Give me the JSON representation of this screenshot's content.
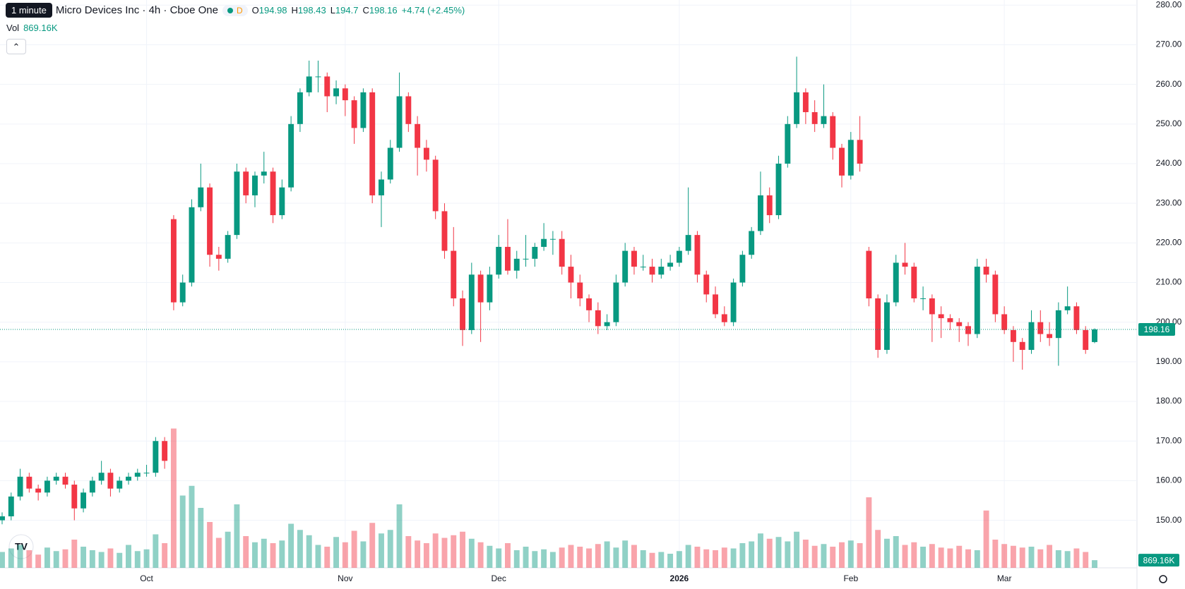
{
  "chart_data": {
    "type": "candlestick",
    "tooltip": "1 minute",
    "title": "Advanced Micro Devices Inc · 4h · Cboe One",
    "interval_badge": "D",
    "ohlc_labels": [
      "O",
      "H",
      "L",
      "C"
    ],
    "change": "+4.74 (+2.45%)",
    "volume_label": "Vol",
    "up_color": "#089981",
    "down_color": "#f23645",
    "ylim": [
      138,
      281.3
    ],
    "yticks": [
      {
        "value": 150,
        "label": "150.00"
      },
      {
        "value": 160,
        "label": "160.00"
      },
      {
        "value": 170,
        "label": "170.00"
      },
      {
        "value": 180,
        "label": "180.00"
      },
      {
        "value": 190,
        "label": "190.00"
      },
      {
        "value": 200,
        "label": "200.00"
      },
      {
        "value": 210,
        "label": "210.00"
      },
      {
        "value": 220,
        "label": "220.00"
      },
      {
        "value": 230,
        "label": "230.00"
      },
      {
        "value": 240,
        "label": "240.00"
      },
      {
        "value": 250,
        "label": "250.00"
      },
      {
        "value": 260,
        "label": "260.00"
      },
      {
        "value": 270,
        "label": "270.00"
      },
      {
        "value": 280,
        "label": "280.00"
      }
    ],
    "grid": true,
    "categories": [
      null,
      null,
      null,
      null,
      null,
      null,
      null,
      null,
      null,
      null,
      null,
      null,
      null,
      null,
      null,
      null,
      "Oct",
      null,
      null,
      null,
      null,
      null,
      null,
      null,
      null,
      null,
      null,
      null,
      null,
      null,
      null,
      null,
      null,
      null,
      null,
      null,
      null,
      null,
      "Nov",
      null,
      null,
      null,
      null,
      null,
      null,
      null,
      null,
      null,
      null,
      null,
      null,
      null,
      null,
      null,
      null,
      "Dec",
      null,
      null,
      null,
      null,
      null,
      null,
      null,
      null,
      null,
      null,
      null,
      null,
      null,
      null,
      null,
      null,
      null,
      null,
      null,
      "2026",
      null,
      null,
      null,
      null,
      null,
      null,
      null,
      null,
      null,
      null,
      null,
      null,
      null,
      null,
      null,
      null,
      null,
      null,
      "Feb",
      null,
      null,
      null,
      null,
      null,
      null,
      null,
      null,
      null,
      null,
      null,
      null,
      null,
      null,
      null,
      null,
      "Mar",
      null,
      null,
      null,
      null,
      null,
      null,
      null,
      null,
      null,
      null
    ],
    "candles": [
      [
        150,
        152,
        149,
        151
      ],
      [
        151,
        157,
        150,
        156
      ],
      [
        156,
        163,
        155,
        161
      ],
      [
        161,
        162,
        157,
        158
      ],
      [
        158,
        159,
        155,
        157
      ],
      [
        157,
        161,
        156,
        160
      ],
      [
        160,
        162,
        159,
        161
      ],
      [
        161,
        162,
        158,
        159
      ],
      [
        159,
        160,
        150,
        153
      ],
      [
        153,
        158,
        152,
        157
      ],
      [
        157,
        161,
        156,
        160
      ],
      [
        160,
        165,
        159,
        162
      ],
      [
        162,
        163,
        156,
        158
      ],
      [
        158,
        161,
        157,
        160
      ],
      [
        160,
        162,
        159,
        161
      ],
      [
        161,
        163,
        160,
        162
      ],
      [
        162,
        164,
        161,
        162
      ],
      [
        162,
        171,
        161,
        170
      ],
      [
        170,
        171,
        163,
        165
      ],
      [
        226,
        227,
        203,
        205
      ],
      [
        205,
        212,
        204,
        210
      ],
      [
        210,
        231,
        209,
        229
      ],
      [
        229,
        240,
        228,
        234
      ],
      [
        234,
        235,
        214,
        217
      ],
      [
        217,
        219,
        213,
        216
      ],
      [
        216,
        223,
        215,
        222
      ],
      [
        222,
        240,
        221,
        238
      ],
      [
        238,
        239,
        230,
        232
      ],
      [
        232,
        238,
        229,
        237
      ],
      [
        237,
        243,
        235,
        238
      ],
      [
        238,
        239,
        225,
        227
      ],
      [
        227,
        236,
        226,
        234
      ],
      [
        234,
        252,
        233,
        250
      ],
      [
        250,
        259,
        248,
        258
      ],
      [
        258,
        266,
        257,
        262
      ],
      [
        262,
        266,
        258,
        262
      ],
      [
        262,
        263,
        253,
        257
      ],
      [
        257,
        261,
        255,
        259
      ],
      [
        259,
        260,
        252,
        256
      ],
      [
        256,
        257,
        245,
        249
      ],
      [
        249,
        259,
        248,
        258
      ],
      [
        258,
        259,
        230,
        232
      ],
      [
        232,
        238,
        224,
        236
      ],
      [
        236,
        246,
        235,
        244
      ],
      [
        244,
        263,
        243,
        257
      ],
      [
        257,
        258,
        248,
        250
      ],
      [
        250,
        252,
        237,
        244
      ],
      [
        244,
        246,
        238,
        241
      ],
      [
        241,
        242,
        226,
        228
      ],
      [
        228,
        230,
        216,
        218
      ],
      [
        218,
        224,
        204,
        206
      ],
      [
        206,
        208,
        194,
        198
      ],
      [
        198,
        215,
        197,
        212
      ],
      [
        212,
        213,
        195,
        205
      ],
      [
        205,
        214,
        203,
        212
      ],
      [
        212,
        222,
        211,
        219
      ],
      [
        219,
        226,
        212,
        213
      ],
      [
        213,
        218,
        211,
        216
      ],
      [
        216,
        222,
        214,
        216
      ],
      [
        216,
        220,
        214,
        219
      ],
      [
        219,
        225,
        218,
        221
      ],
      [
        221,
        223,
        217,
        221
      ],
      [
        221,
        223,
        212,
        214
      ],
      [
        214,
        217,
        206,
        210
      ],
      [
        210,
        212,
        204,
        206
      ],
      [
        206,
        207,
        200,
        203
      ],
      [
        203,
        205,
        197,
        199
      ],
      [
        199,
        202,
        198,
        200
      ],
      [
        200,
        212,
        199,
        210
      ],
      [
        210,
        220,
        209,
        218
      ],
      [
        218,
        219,
        212,
        214
      ],
      [
        214,
        217,
        213,
        214
      ],
      [
        214,
        216,
        210,
        212
      ],
      [
        212,
        216,
        211,
        214
      ],
      [
        214,
        217,
        213,
        215
      ],
      [
        215,
        219,
        214,
        218
      ],
      [
        218,
        234,
        217,
        222
      ],
      [
        222,
        223,
        210,
        212
      ],
      [
        212,
        213,
        205,
        207
      ],
      [
        207,
        209,
        201,
        202
      ],
      [
        202,
        204,
        199,
        200
      ],
      [
        200,
        211,
        199,
        210
      ],
      [
        210,
        218,
        209,
        217
      ],
      [
        217,
        224,
        216,
        223
      ],
      [
        223,
        238,
        222,
        232
      ],
      [
        232,
        234,
        225,
        227
      ],
      [
        227,
        242,
        226,
        240
      ],
      [
        240,
        252,
        239,
        250
      ],
      [
        250,
        267,
        249,
        258
      ],
      [
        258,
        259,
        250,
        253
      ],
      [
        253,
        256,
        248,
        250
      ],
      [
        250,
        260,
        249,
        252
      ],
      [
        252,
        253,
        241,
        244
      ],
      [
        244,
        245,
        234,
        237
      ],
      [
        237,
        248,
        236,
        246
      ],
      [
        246,
        252,
        238,
        240
      ],
      [
        218,
        219,
        204,
        206
      ],
      [
        206,
        207,
        191,
        193
      ],
      [
        193,
        207,
        192,
        205
      ],
      [
        205,
        217,
        204,
        215
      ],
      [
        215,
        220,
        212,
        214
      ],
      [
        214,
        215,
        205,
        206
      ],
      [
        206,
        209,
        203,
        206
      ],
      [
        206,
        207,
        195,
        202
      ],
      [
        202,
        204,
        196,
        201
      ],
      [
        201,
        202,
        198,
        200
      ],
      [
        200,
        201,
        195,
        199
      ],
      [
        199,
        200,
        194,
        197
      ],
      [
        197,
        216,
        196,
        214
      ],
      [
        214,
        216,
        210,
        212
      ],
      [
        212,
        213,
        200,
        202
      ],
      [
        202,
        204,
        197,
        198
      ],
      [
        198,
        199,
        190,
        195
      ],
      [
        195,
        196,
        188,
        193
      ],
      [
        193,
        203,
        192,
        200
      ],
      [
        200,
        203,
        195,
        197
      ],
      [
        197,
        200,
        194,
        196
      ],
      [
        196,
        205,
        189,
        203
      ],
      [
        203,
        209,
        202,
        204
      ],
      [
        204,
        205,
        197,
        198
      ],
      [
        198,
        199,
        192,
        193
      ],
      [
        194.98,
        198.43,
        194.7,
        198.16
      ]
    ],
    "vlim": [
      0,
      16000
    ],
    "volumes": [
      1800,
      2200,
      2600,
      2000,
      1500,
      2300,
      1900,
      2100,
      3200,
      2400,
      2000,
      1800,
      2200,
      1700,
      2600,
      1900,
      2100,
      3800,
      2800,
      15800,
      8200,
      9300,
      6800,
      5200,
      3400,
      4100,
      7200,
      3600,
      2900,
      3300,
      2800,
      3100,
      5000,
      4300,
      3700,
      2600,
      2400,
      3500,
      2900,
      4200,
      3000,
      5100,
      3900,
      4300,
      7200,
      3600,
      3100,
      2800,
      3900,
      3400,
      3700,
      4100,
      3300,
      2900,
      2500,
      2200,
      2800,
      2000,
      2400,
      1900,
      2100,
      1800,
      2300,
      2600,
      2400,
      2200,
      2700,
      3000,
      2300,
      3100,
      2600,
      2000,
      1700,
      1800,
      1600,
      1900,
      2600,
      2400,
      2100,
      2000,
      2300,
      2200,
      2800,
      3000,
      3900,
      3300,
      3500,
      3000,
      4100,
      3200,
      2500,
      2700,
      2400,
      2900,
      3100,
      2800,
      8000,
      4300,
      3300,
      3600,
      2600,
      2900,
      2400,
      2700,
      2300,
      2200,
      2500,
      2100,
      2000,
      6500,
      3200,
      2700,
      2500,
      2300,
      2400,
      2100,
      2600,
      2000,
      1900,
      2200,
      1800,
      869.16
    ],
    "volume_value_labels": {
      "121": "869.16K"
    }
  }
}
